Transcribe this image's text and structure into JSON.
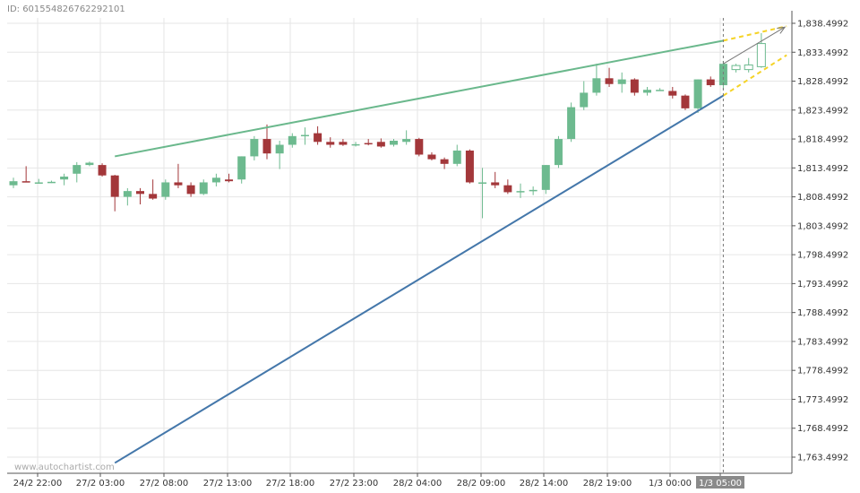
{
  "header": {
    "id_text": "ID: 6015548267622921​01"
  },
  "watermark": "www.autochartist.com",
  "colors": {
    "up": "#6dba8f",
    "down": "#a3373a",
    "upper_line": "#6ab88c",
    "lower_line": "#4477aa",
    "projection": "#f5d327",
    "grid": "#e6e6e6"
  },
  "chart_data": {
    "type": "candlestick",
    "x_labels": [
      "24/2 22:00",
      "27/2 03:00",
      "27/2 08:00",
      "27/2 13:00",
      "27/2 18:00",
      "27/2 23:00",
      "28/2 04:00",
      "28/2 09:00",
      "28/2 14:00",
      "28/2 19:00",
      "1/3 00:00",
      "1/3 05:00"
    ],
    "highlight_label": "1/3 05:00",
    "y_ticks": [
      "1,838.4992",
      "1,833.4992",
      "1,828.4992",
      "1,823.4992",
      "1,818.4992",
      "1,813.4992",
      "1,808.4992",
      "1,803.4992",
      "1,798.4992",
      "1,793.4992",
      "1,788.4992",
      "1,783.4992",
      "1,778.4992",
      "1,773.4992",
      "1,768.4992",
      "1,763.4992"
    ],
    "ylim": [
      1762.5,
      1839.5
    ],
    "candles": [
      [
        1810.5,
        1811.8,
        1810.0,
        1811.2
      ],
      [
        1811.2,
        1813.8,
        1811.0,
        1811.0
      ],
      [
        1811.0,
        1811.6,
        1810.8,
        1811.0
      ],
      [
        1811.0,
        1811.3,
        1810.9,
        1811.1
      ],
      [
        1811.5,
        1812.5,
        1810.5,
        1812.0
      ],
      [
        1812.5,
        1814.5,
        1811.0,
        1814.0
      ],
      [
        1814.0,
        1814.6,
        1813.8,
        1814.4
      ],
      [
        1814.0,
        1814.3,
        1812.0,
        1812.2
      ],
      [
        1812.2,
        1812.3,
        1806.0,
        1808.5
      ],
      [
        1808.5,
        1810.0,
        1807.0,
        1809.5
      ],
      [
        1809.5,
        1810.0,
        1807.2,
        1809.0
      ],
      [
        1809.0,
        1811.5,
        1808.0,
        1808.2
      ],
      [
        1808.5,
        1811.5,
        1808.0,
        1811.0
      ],
      [
        1811.0,
        1814.2,
        1810.0,
        1810.5
      ],
      [
        1810.5,
        1811.0,
        1808.5,
        1809.0
      ],
      [
        1809.0,
        1811.5,
        1808.8,
        1811.0
      ],
      [
        1811.0,
        1812.5,
        1810.3,
        1811.8
      ],
      [
        1811.5,
        1812.5,
        1811.0,
        1811.2
      ],
      [
        1811.5,
        1815.5,
        1810.8,
        1815.5
      ],
      [
        1815.5,
        1819.0,
        1814.8,
        1818.5
      ],
      [
        1818.5,
        1821.0,
        1815.0,
        1816.0
      ],
      [
        1816.0,
        1818.2,
        1813.3,
        1817.5
      ],
      [
        1817.5,
        1819.5,
        1817.0,
        1819.0
      ],
      [
        1819.0,
        1820.5,
        1817.5,
        1819.2
      ],
      [
        1819.5,
        1820.7,
        1817.5,
        1818.0
      ],
      [
        1818.0,
        1818.8,
        1817.0,
        1817.5
      ],
      [
        1818.0,
        1818.5,
        1817.3,
        1817.5
      ],
      [
        1817.5,
        1818.0,
        1817.2,
        1817.6
      ],
      [
        1817.8,
        1818.5,
        1817.4,
        1817.6
      ],
      [
        1818.0,
        1818.6,
        1817.0,
        1817.2
      ],
      [
        1817.5,
        1818.5,
        1817.2,
        1818.2
      ],
      [
        1818.0,
        1820.0,
        1817.5,
        1818.5
      ],
      [
        1818.5,
        1818.7,
        1815.5,
        1815.8
      ],
      [
        1815.8,
        1816.2,
        1814.8,
        1815.0
      ],
      [
        1815.0,
        1815.3,
        1813.3,
        1814.2
      ],
      [
        1814.2,
        1817.5,
        1813.8,
        1816.5
      ],
      [
        1816.5,
        1816.7,
        1810.8,
        1811.0
      ],
      [
        1811.0,
        1813.5,
        1804.8,
        1811.0
      ],
      [
        1811.0,
        1812.8,
        1810.0,
        1810.5
      ],
      [
        1810.5,
        1811.5,
        1809.0,
        1809.3
      ],
      [
        1809.3,
        1810.8,
        1808.3,
        1809.5
      ],
      [
        1809.5,
        1810.3,
        1808.8,
        1809.7
      ],
      [
        1809.7,
        1814.0,
        1809.0,
        1814.0
      ],
      [
        1814.0,
        1819.0,
        1813.5,
        1818.5
      ],
      [
        1818.5,
        1824.8,
        1818.0,
        1824.0
      ],
      [
        1824.0,
        1828.5,
        1823.5,
        1826.5
      ],
      [
        1826.5,
        1831.5,
        1826.0,
        1829.0
      ],
      [
        1829.0,
        1830.8,
        1827.5,
        1828.0
      ],
      [
        1828.0,
        1830.0,
        1826.5,
        1828.8
      ],
      [
        1828.8,
        1829.0,
        1826.0,
        1826.5
      ],
      [
        1826.5,
        1827.5,
        1826.0,
        1827.0
      ],
      [
        1827.0,
        1827.3,
        1826.8,
        1827.0
      ],
      [
        1826.8,
        1827.5,
        1825.5,
        1826.0
      ],
      [
        1826.0,
        1826.2,
        1823.5,
        1823.8
      ],
      [
        1823.8,
        1828.8,
        1823.0,
        1828.8
      ],
      [
        1828.8,
        1829.3,
        1827.5,
        1827.8
      ],
      [
        1827.8,
        1832.0,
        1827.0,
        1831.5
      ],
      [
        1830.5,
        1831.5,
        1830.0,
        1831.2
      ],
      [
        1830.5,
        1832.5,
        1830.0,
        1831.3
      ],
      [
        1831.0,
        1836.8,
        1830.8,
        1835.0
      ]
    ],
    "open_candles_from_index": 57,
    "current_index": 56,
    "upper_line": {
      "from": [
        8,
        1815.5
      ],
      "to": [
        56,
        1835.5
      ]
    },
    "lower_line": {
      "from": [
        8,
        1762.5
      ],
      "to": [
        56,
        1826.0
      ]
    },
    "projection_upper": {
      "from": [
        56,
        1835.5
      ],
      "to": [
        61,
        1838.0
      ]
    },
    "projection_lower": {
      "from": [
        56,
        1826.0
      ],
      "to": [
        61,
        1833.0
      ]
    },
    "arrow": {
      "from": [
        56,
        1831.5
      ],
      "to": [
        61,
        1838.0
      ]
    }
  }
}
